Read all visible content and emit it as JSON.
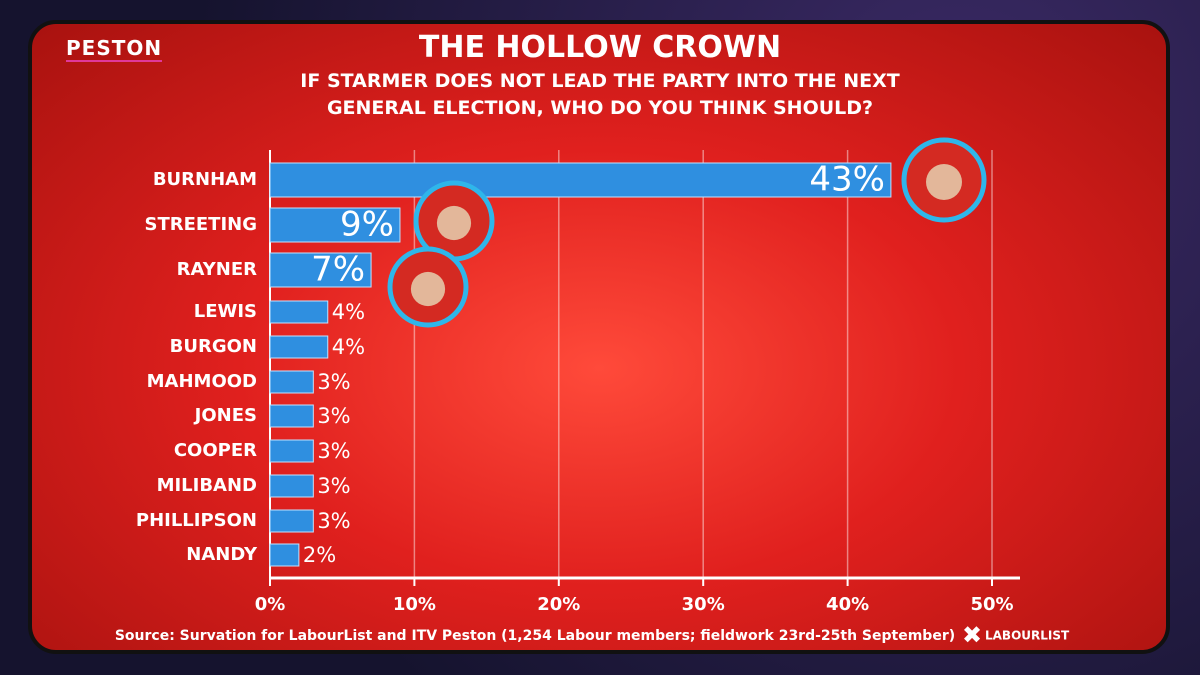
{
  "logo": "PESTON",
  "footer_logo": "LABOURLIST",
  "chart_data": {
    "type": "bar",
    "orientation": "horizontal",
    "title": "THE HOLLOW CROWN",
    "subtitle": "IF STARMER DOES NOT LEAD THE PARTY INTO THE NEXT GENERAL ELECTION, WHO DO YOU THINK SHOULD?",
    "categories": [
      "BURNHAM",
      "STREETING",
      "RAYNER",
      "LEWIS",
      "BURGON",
      "MAHMOOD",
      "JONES",
      "COOPER",
      "MILIBAND",
      "PHILLIPSON",
      "NANDY"
    ],
    "values": [
      43,
      9,
      7,
      4,
      4,
      3,
      3,
      3,
      3,
      3,
      2
    ],
    "value_labels": [
      "43%",
      "9%",
      "7%",
      "4%",
      "4%",
      "3%",
      "3%",
      "3%",
      "3%",
      "3%",
      "2%"
    ],
    "color": "#2f8fe0",
    "xlim": [
      0,
      50
    ],
    "xticks": [
      {
        "value": 0,
        "label": "0%"
      },
      {
        "value": 10,
        "label": "10%"
      },
      {
        "value": 20,
        "label": "20%"
      },
      {
        "value": 30,
        "label": "30%"
      },
      {
        "value": 40,
        "label": "40%"
      },
      {
        "value": 50,
        "label": "50%"
      }
    ],
    "grid": true,
    "source": "Source: Survation for LabourList and ITV Peston (1,254 Labour members; fieldwork 23rd-25th September)"
  }
}
